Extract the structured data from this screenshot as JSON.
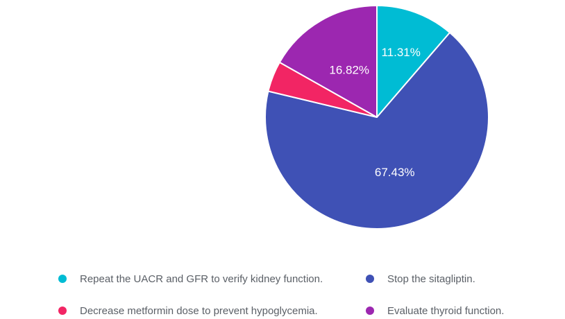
{
  "chart_data": {
    "type": "pie",
    "title": "",
    "slices": [
      {
        "label": "Repeat the UACR and GFR to verify kidney function.",
        "value": 11.31,
        "percent_label": "11.31%",
        "color": "#00BCD4"
      },
      {
        "label": "Stop the sitagliptin.",
        "value": 67.43,
        "percent_label": "67.43%",
        "color": "#3F51B5"
      },
      {
        "label": "Decrease metformin dose to prevent hypoglycemia.",
        "value": 4.44,
        "percent_label": "",
        "color": "#F22564"
      },
      {
        "label": "Evaluate thyroid function.",
        "value": 16.82,
        "percent_label": "16.82%",
        "color": "#9C27B0"
      }
    ],
    "start_angle_deg": 0,
    "direction": "clockwise",
    "slice_border_color": "#ffffff",
    "percent_label_color": "#ffffff",
    "label_radius_frac": [
      0.62,
      0.52,
      0.5,
      0.49
    ],
    "legend_position": "bottom",
    "legend_columns": 2,
    "legend_text_color": "#5a5f66"
  }
}
